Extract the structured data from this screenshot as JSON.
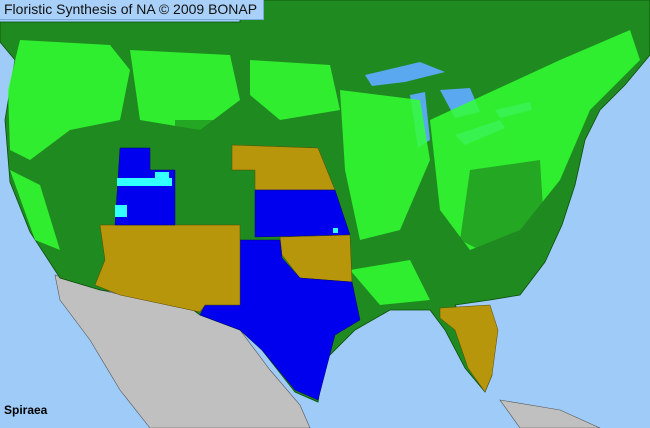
{
  "title": "Floristic Synthesis of NA © 2009 BONAP",
  "taxon": "Spiraea",
  "colors": {
    "ocean": "#9ecbf7",
    "present_native": "#1f8a1f",
    "present_county": "#33ff33",
    "absent_state": "#b8960c",
    "not_present_blue": "#0000ee",
    "rare": "#33ffff",
    "outside_area": "#c0c0c0"
  }
}
